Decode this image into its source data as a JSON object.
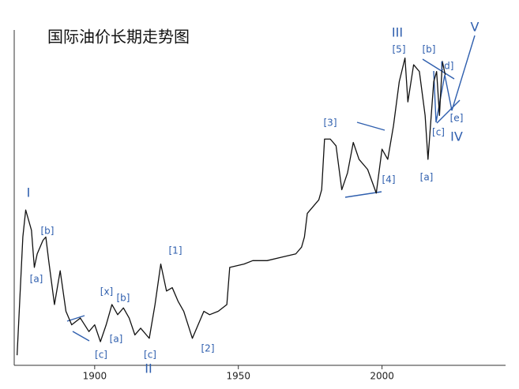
{
  "chart_data": {
    "type": "line",
    "title": "国际油价长期走势图",
    "x": [
      1873,
      1875,
      1876,
      1878,
      1879,
      1880,
      1882,
      1883,
      1884,
      1886,
      1888,
      1890,
      1892,
      1895,
      1898,
      1900,
      1902,
      1904,
      1906,
      1908,
      1910,
      1912,
      1914,
      1916,
      1919,
      1921,
      1923,
      1925,
      1927,
      1929,
      1931,
      1934,
      1936,
      1938,
      1940,
      1943,
      1946,
      1947,
      1952,
      1955,
      1960,
      1965,
      1970,
      1972,
      1973,
      1974,
      1978,
      1979,
      1980,
      1982,
      1984,
      1986,
      1988,
      1990,
      1992,
      1995,
      1998,
      2000,
      2002,
      2004,
      2006,
      2008,
      2009,
      2011,
      2013,
      2015,
      2016,
      2018,
      2019,
      2020,
      2021,
      2022
    ],
    "series": [
      {
        "color": "#111111",
        "values": [
          3,
          38,
          46,
          40,
          29,
          33,
          37,
          38,
          31,
          18,
          28,
          16,
          12,
          14,
          10,
          12,
          7,
          12,
          18,
          15,
          17,
          14,
          9,
          11,
          8,
          18,
          30,
          22,
          23,
          19,
          16,
          8,
          12,
          16,
          15,
          16,
          18,
          29,
          30,
          31,
          31,
          32,
          33,
          35,
          38,
          45,
          49,
          52,
          67,
          67,
          65,
          52,
          57,
          66,
          61,
          58,
          51,
          64,
          61,
          71,
          84,
          91,
          78,
          89,
          87,
          74,
          61,
          84,
          87,
          74,
          90,
          86
        ]
      }
    ],
    "xlim": [
      1872,
      2043
    ],
    "ylim": [
      0,
      100
    ],
    "xticks": [
      1900,
      1950,
      2000
    ],
    "annotations": [
      "I",
      "[b]",
      "[a]",
      "[x]",
      "[b]",
      "[a]",
      "[c]",
      "[c]",
      "II",
      "[1]",
      "[2]",
      "[3]",
      "[4]",
      "[5]",
      "III",
      "[b]",
      "[d]",
      "[c]",
      "[e]",
      "IV",
      "[a]",
      "V"
    ],
    "annotation_color": "#2f5fae"
  }
}
